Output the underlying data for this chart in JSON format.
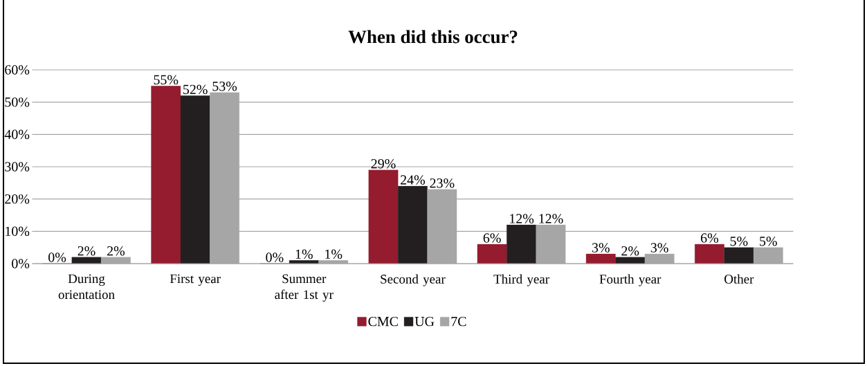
{
  "chart_data": {
    "type": "bar",
    "title": "When did this occur?",
    "categories": [
      "During orientation",
      "First year",
      "Summer after 1st yr",
      "Second year",
      "Third year",
      "Fourth year",
      "Other"
    ],
    "series": [
      {
        "name": "CMC",
        "color": "#951b2f",
        "values": [
          0,
          55,
          0,
          29,
          6,
          3,
          6
        ],
        "value_labels": [
          "0%",
          "55%",
          "0%",
          "29%",
          "6%",
          "3%",
          "6%"
        ]
      },
      {
        "name": "UG",
        "color": "#231f20",
        "values": [
          2,
          52,
          1,
          24,
          12,
          2,
          5
        ],
        "value_labels": [
          "2%",
          "52%",
          "1%",
          "24%",
          "12%",
          "2%",
          "5%"
        ]
      },
      {
        "name": "7C",
        "color": "#a6a6a6",
        "values": [
          2,
          53,
          1,
          23,
          12,
          3,
          5
        ],
        "value_labels": [
          "2%",
          "53%",
          "1%",
          "23%",
          "12%",
          "3%",
          "5%"
        ]
      }
    ],
    "ylim": [
      0,
      60
    ],
    "yticks": [
      {
        "value": 0,
        "label": "0%"
      },
      {
        "value": 10,
        "label": "10%"
      },
      {
        "value": 20,
        "label": "20%"
      },
      {
        "value": 30,
        "label": "30%"
      },
      {
        "value": 40,
        "label": "40%"
      },
      {
        "value": 50,
        "label": "50%"
      },
      {
        "value": 60,
        "label": "60%"
      }
    ],
    "grid": "y",
    "legend": "bottom"
  }
}
